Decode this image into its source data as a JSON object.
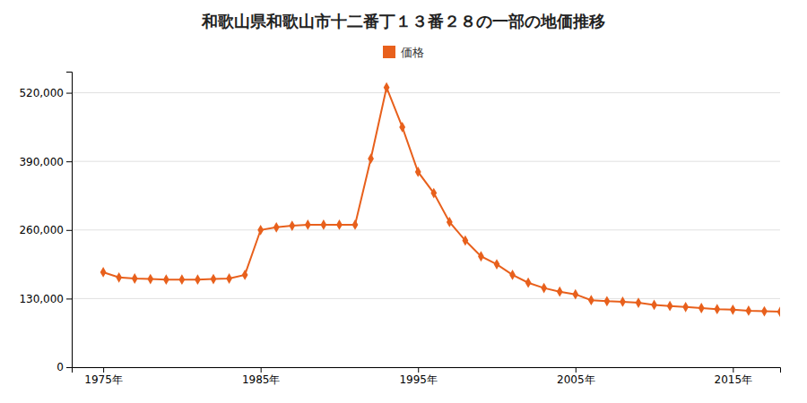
{
  "chart_data": {
    "type": "line",
    "title": "和歌山県和歌山市十二番丁１３番２８の一部の地価推移",
    "x": [
      1975,
      1976,
      1977,
      1978,
      1979,
      1980,
      1981,
      1982,
      1983,
      1984,
      1985,
      1986,
      1987,
      1988,
      1989,
      1990,
      1991,
      1992,
      1993,
      1994,
      1995,
      1996,
      1997,
      1998,
      1999,
      2000,
      2001,
      2002,
      2003,
      2004,
      2005,
      2006,
      2007,
      2008,
      2009,
      2010,
      2011,
      2012,
      2013,
      2014,
      2015,
      2016,
      2017,
      2018
    ],
    "series": [
      {
        "name": "価格",
        "color": "#e8601c",
        "marker": "diamond",
        "values": [
          180000,
          170000,
          168000,
          167000,
          166000,
          166000,
          166000,
          167000,
          168000,
          175000,
          260000,
          265000,
          268000,
          270000,
          270000,
          270000,
          270000,
          395000,
          530000,
          455000,
          370000,
          330000,
          275000,
          240000,
          210000,
          195000,
          175000,
          160000,
          150000,
          143000,
          138000,
          127000,
          125000,
          124000,
          122000,
          118000,
          116000,
          114000,
          112000,
          110000,
          109000,
          107000,
          106000,
          105000
        ]
      }
    ],
    "xlim": [
      1973,
      2018
    ],
    "xticks": [
      {
        "value": 1975,
        "label": "1975年"
      },
      {
        "value": 1985,
        "label": "1985年"
      },
      {
        "value": 1995,
        "label": "1995年"
      },
      {
        "value": 2005,
        "label": "2005年"
      },
      {
        "value": 2015,
        "label": "2015年"
      }
    ],
    "ylim": [
      0,
      560000
    ],
    "yticks": [
      0,
      {
        "value": 130000,
        "label": "130,000"
      },
      {
        "value": 260000,
        "label": "260,000"
      },
      {
        "value": 390000,
        "label": "390,000"
      },
      {
        "value": 520000,
        "label": "520,000"
      }
    ],
    "grid": "y",
    "legend": "top"
  }
}
